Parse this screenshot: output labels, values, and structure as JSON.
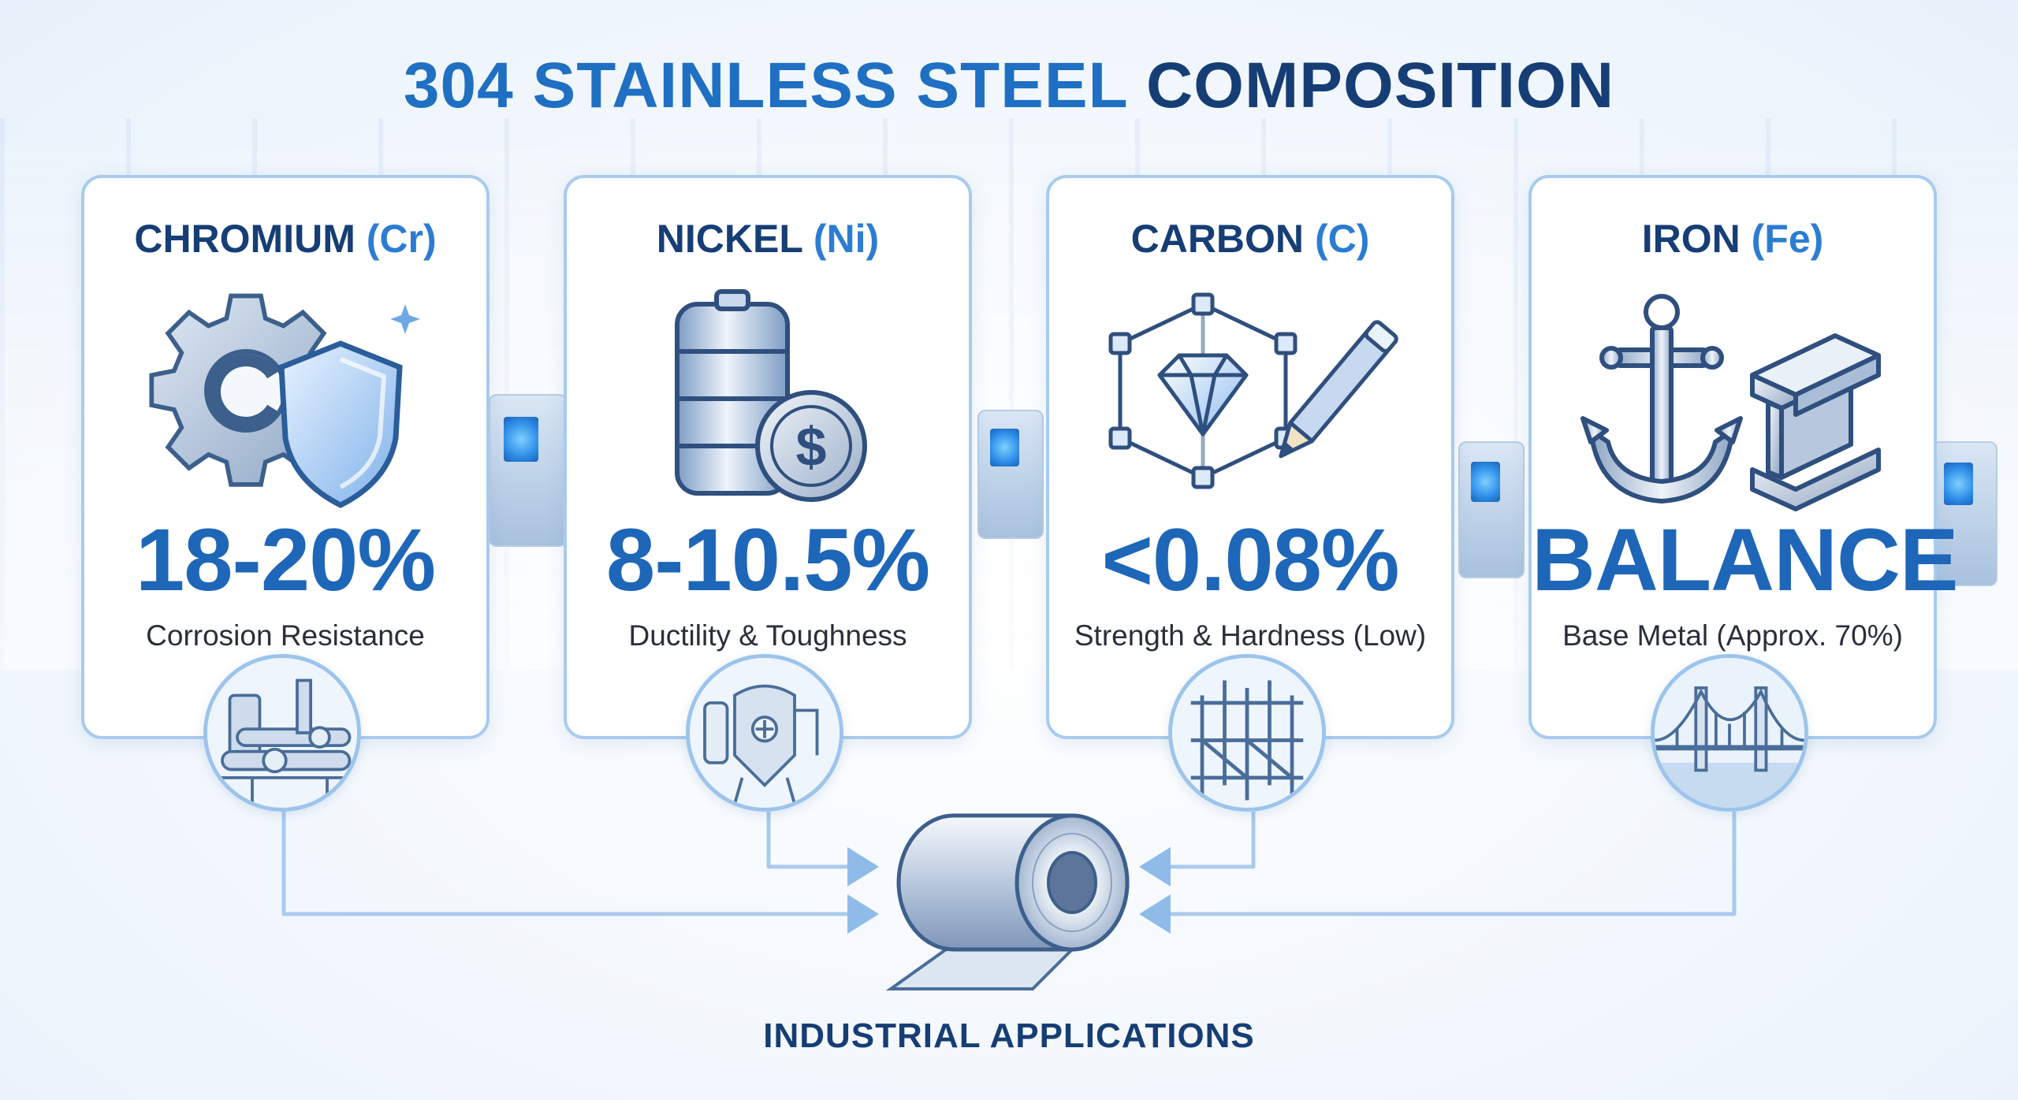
{
  "title": {
    "part1": "304 STAINLESS STEEL",
    "part2": "COMPOSITION"
  },
  "elements": [
    {
      "name": "CHROMIUM",
      "symbol": "(Cr)",
      "value": "18-20%",
      "description": "Corrosion Resistance"
    },
    {
      "name": "NICKEL",
      "symbol": "(Ni)",
      "value": "8-10.5%",
      "description": "Ductility & Toughness"
    },
    {
      "name": "CARBON",
      "symbol": "(C)",
      "value": "<0.08%",
      "description": "Strength & Hardness (Low)"
    },
    {
      "name": "IRON",
      "symbol": "(Fe)",
      "value": "BALANCE",
      "description": "Base Metal (Approx. 70%)"
    }
  ],
  "footer": "INDUSTRIAL APPLICATIONS",
  "colors": {
    "accent": "#1f6fc2",
    "navy": "#163e75",
    "border": "#a8cbee"
  },
  "icons": [
    "gear-shield-icon",
    "battery-coin-icon",
    "diamond-pencil-icon",
    "anchor-beam-icon",
    "pipes-icon",
    "tank-icon",
    "frame-icon",
    "bridge-icon",
    "steel-coil-icon"
  ]
}
